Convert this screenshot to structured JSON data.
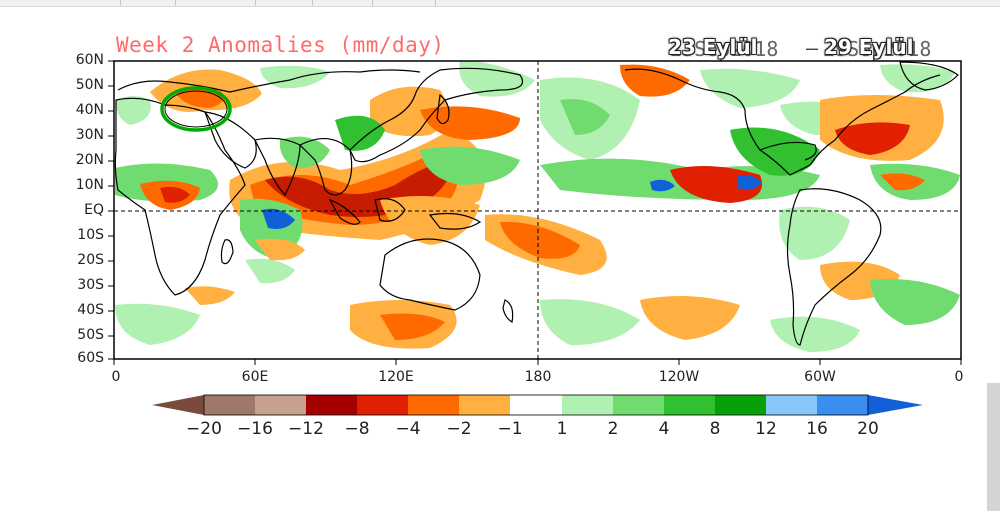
{
  "map": {
    "title": "Week 2 Anomalies (mm/day)",
    "date_underlay_start": "23Sep2018",
    "date_underlay_end": "29Sep2018",
    "date_start_overlay": "23 Eylül",
    "date_end_overlay": "29 Eylül",
    "latitude_labels": [
      "60N",
      "50N",
      "40N",
      "30N",
      "20N",
      "10N",
      "EQ",
      "10S",
      "20S",
      "30S",
      "40S",
      "50S",
      "60S"
    ],
    "longitude_labels": [
      "0",
      "60E",
      "120E",
      "180",
      "120W",
      "60W",
      "0"
    ],
    "highlight": "green circle over Turkey region"
  },
  "colorbar": {
    "labels": [
      "-20",
      "-16",
      "-12",
      "-8",
      "-4",
      "-2",
      "-1",
      "1",
      "2",
      "4",
      "8",
      "12",
      "16",
      "20"
    ],
    "colors": [
      "#7a4a3a",
      "#a0786a",
      "#c8a090",
      "#a40000",
      "#e02000",
      "#ff6a00",
      "#ffb040",
      "#ffffff",
      "#b0f0b0",
      "#70dc70",
      "#30c030",
      "#08a008",
      "#88c8f8",
      "#3a8ef0",
      "#1060d8"
    ]
  },
  "colors": {
    "dry_strong": "#c81c00",
    "dry_mid": "#ff6a00",
    "dry_light": "#ffb040",
    "wet_light": "#b0f0b0",
    "wet_mid": "#70dc70",
    "wet_strong": "#30c030",
    "highlight_ring": "#00aa00"
  }
}
